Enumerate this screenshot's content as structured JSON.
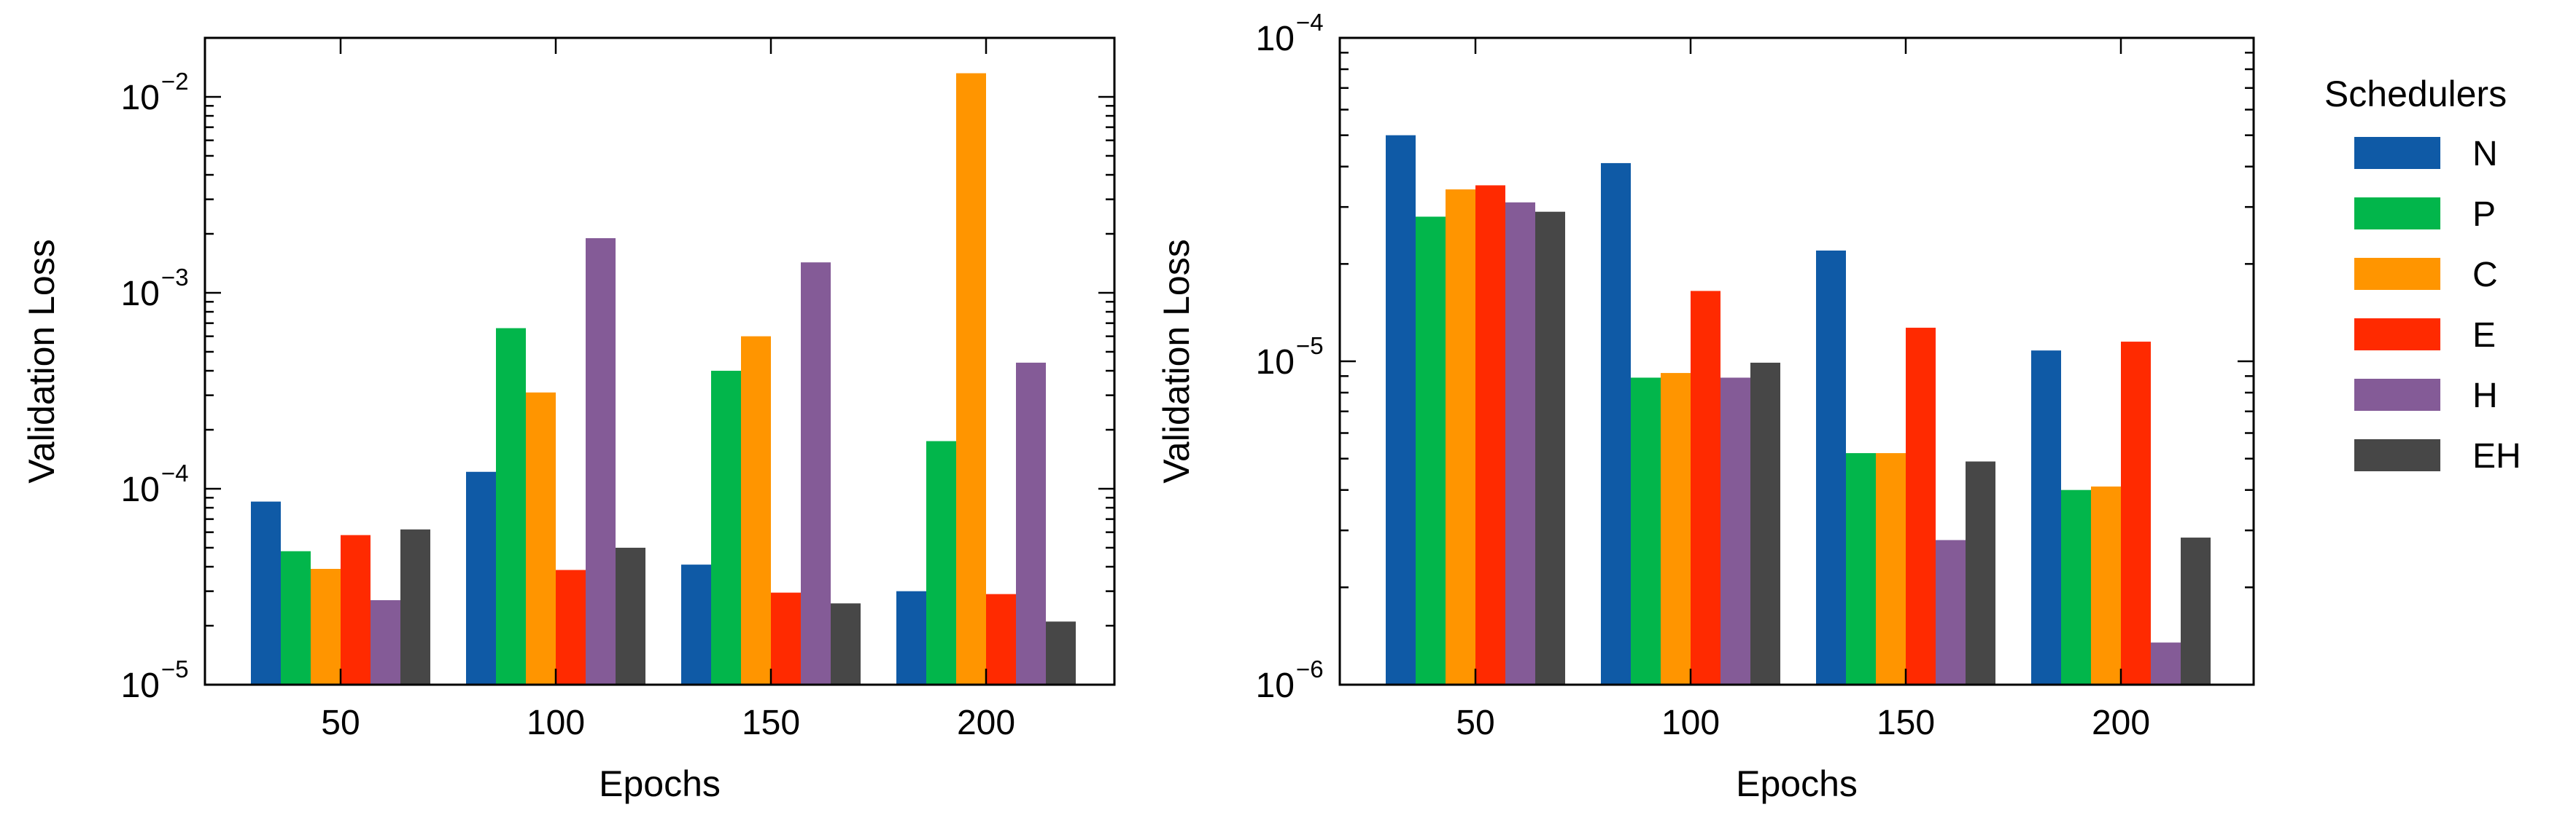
{
  "chart_data": [
    {
      "type": "bar",
      "categories": [
        "50",
        "100",
        "150",
        "200"
      ],
      "xlabel": "Epochs",
      "ylabel": "Validation Loss",
      "yscale": "log",
      "ylim": [
        1e-05,
        0.02
      ],
      "yticks": [
        {
          "base": "10",
          "exp": "−5",
          "value": 1e-05
        },
        {
          "base": "10",
          "exp": "−4",
          "value": 0.0001
        },
        {
          "base": "10",
          "exp": "−3",
          "value": 0.001
        },
        {
          "base": "10",
          "exp": "−2",
          "value": 0.01
        }
      ],
      "series": [
        {
          "name": "N",
          "color": "#0f5aa6",
          "values": [
            8.6e-05,
            0.000122,
            4.1e-05,
            3e-05
          ]
        },
        {
          "name": "P",
          "color": "#02b64b",
          "values": [
            4.8e-05,
            0.00066,
            0.0004,
            0.000175
          ]
        },
        {
          "name": "C",
          "color": "#ff9500",
          "values": [
            3.9e-05,
            0.00031,
            0.0006,
            0.0132
          ]
        },
        {
          "name": "E",
          "color": "#ff2a00",
          "values": [
            5.8e-05,
            3.85e-05,
            2.95e-05,
            2.9e-05
          ]
        },
        {
          "name": "H",
          "color": "#845b97",
          "values": [
            2.7e-05,
            0.0019,
            0.00143,
            0.00044
          ]
        },
        {
          "name": "EH",
          "color": "#474747",
          "values": [
            6.2e-05,
            5e-05,
            2.6e-05,
            2.1e-05
          ]
        }
      ]
    },
    {
      "type": "bar",
      "categories": [
        "50",
        "100",
        "150",
        "200"
      ],
      "xlabel": "Epochs",
      "ylabel": "Validation Loss",
      "yscale": "log",
      "ylim": [
        1e-06,
        0.0001
      ],
      "yticks": [
        {
          "base": "10",
          "exp": "−6",
          "value": 1e-06
        },
        {
          "base": "10",
          "exp": "−5",
          "value": 1e-05
        },
        {
          "base": "10",
          "exp": "−4",
          "value": 0.0001
        }
      ],
      "legend_title": "Schedulers",
      "legend_position": "right",
      "series": [
        {
          "name": "N",
          "color": "#0f5aa6",
          "values": [
            5e-05,
            4.1e-05,
            2.2e-05,
            1.08e-05
          ]
        },
        {
          "name": "P",
          "color": "#02b64b",
          "values": [
            2.8e-05,
            8.9e-06,
            5.2e-06,
            4e-06
          ]
        },
        {
          "name": "C",
          "color": "#ff9500",
          "values": [
            3.4e-05,
            9.2e-06,
            5.2e-06,
            4.1e-06
          ]
        },
        {
          "name": "E",
          "color": "#ff2a00",
          "values": [
            3.5e-05,
            1.65e-05,
            1.27e-05,
            1.15e-05
          ]
        },
        {
          "name": "H",
          "color": "#845b97",
          "values": [
            3.1e-05,
            8.9e-06,
            2.8e-06,
            1.35e-06
          ]
        },
        {
          "name": "EH",
          "color": "#474747",
          "values": [
            2.9e-05,
            9.9e-06,
            4.9e-06,
            2.85e-06
          ]
        }
      ]
    }
  ]
}
